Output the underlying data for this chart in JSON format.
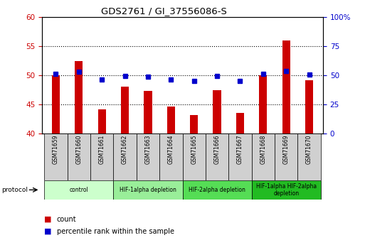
{
  "title": "GDS2761 / GI_37556086-S",
  "samples": [
    "GSM71659",
    "GSM71660",
    "GSM71661",
    "GSM71662",
    "GSM71663",
    "GSM71664",
    "GSM71665",
    "GSM71666",
    "GSM71667",
    "GSM71668",
    "GSM71669",
    "GSM71670"
  ],
  "counts": [
    50.0,
    52.5,
    44.2,
    48.0,
    47.3,
    44.7,
    43.2,
    47.4,
    43.5,
    50.0,
    56.0,
    49.2
  ],
  "percentiles": [
    51.5,
    52.8,
    46.2,
    49.5,
    49.0,
    46.5,
    45.0,
    49.2,
    45.2,
    51.5,
    53.5,
    50.7
  ],
  "ylim_left": [
    40,
    60
  ],
  "ylim_right": [
    0,
    100
  ],
  "yticks_left": [
    40,
    45,
    50,
    55,
    60
  ],
  "yticks_right": [
    0,
    25,
    50,
    75,
    100
  ],
  "bar_color": "#cc0000",
  "dot_color": "#0000cc",
  "bar_bottom": 40,
  "protocol_groups": [
    {
      "label": "control",
      "start": 0,
      "end": 2,
      "color": "#ccffcc"
    },
    {
      "label": "HIF-1alpha depletion",
      "start": 3,
      "end": 5,
      "color": "#99ee99"
    },
    {
      "label": "HIF-2alpha depletion",
      "start": 6,
      "end": 8,
      "color": "#55dd55"
    },
    {
      "label": "HIF-1alpha HIF-2alpha\ndepletion",
      "start": 9,
      "end": 11,
      "color": "#22bb22"
    }
  ],
  "legend_count_label": "count",
  "legend_pct_label": "percentile rank within the sample",
  "protocol_label": "protocol",
  "tick_color_left": "#cc0000",
  "tick_color_right": "#0000cc",
  "plot_bg_color": "#ffffff",
  "sample_box_color": "#d0d0d0",
  "bar_width": 0.35
}
